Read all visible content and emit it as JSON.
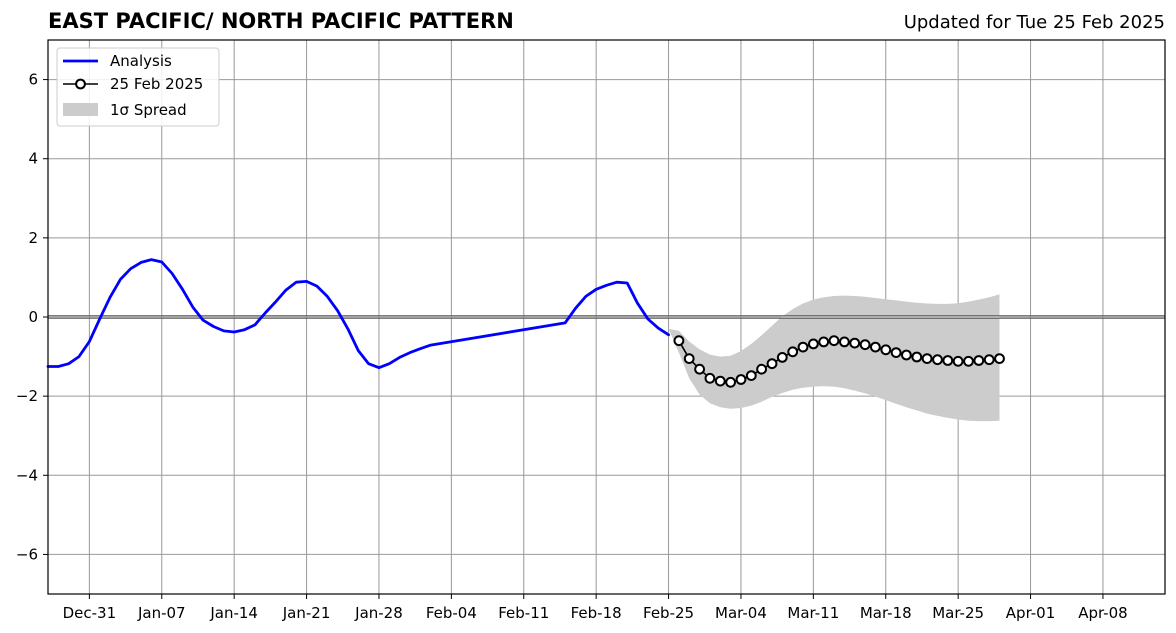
{
  "header": {
    "title": "EAST PACIFIC/ NORTH PACIFIC PATTERN",
    "updated": "Updated for Tue 25 Feb 2025"
  },
  "chart_data": {
    "type": "line",
    "title": "EAST PACIFIC/ NORTH PACIFIC PATTERN",
    "subtitle": "Updated for Tue 25 Feb 2025",
    "xlabel": "",
    "ylabel": "",
    "xlim": [
      "2024-12-27",
      "2025-04-14"
    ],
    "ylim": [
      -7,
      7
    ],
    "x_ticks": [
      "Dec-31",
      "Jan-07",
      "Jan-14",
      "Jan-21",
      "Jan-28",
      "Feb-04",
      "Feb-11",
      "Feb-18",
      "Feb-25",
      "Mar-04",
      "Mar-11",
      "Mar-18",
      "Mar-25",
      "Apr-01",
      "Apr-08"
    ],
    "y_ticks": [
      6,
      4,
      2,
      0,
      -2,
      -4,
      -6
    ],
    "grid": true,
    "zero_line": true,
    "legend_position": "top-left",
    "legend": {
      "analysis": "Analysis",
      "forecast": "25 Feb 2025",
      "spread": "1σ Spread"
    },
    "colors": {
      "analysis": "#0000ff",
      "forecast_line": "#000000",
      "forecast_marker_fill": "#ffffff",
      "spread": "#cccccc",
      "grid": "#999999"
    },
    "analysis": {
      "name": "Analysis",
      "dates": [
        "2024-12-27",
        "2024-12-28",
        "2024-12-29",
        "2024-12-30",
        "2024-12-31",
        "2025-01-01",
        "2025-01-02",
        "2025-01-03",
        "2025-01-04",
        "2025-01-05",
        "2025-01-06",
        "2025-01-07",
        "2025-01-08",
        "2025-01-09",
        "2025-01-10",
        "2025-01-11",
        "2025-01-12",
        "2025-01-13",
        "2025-01-14",
        "2025-01-15",
        "2025-01-16",
        "2025-01-17",
        "2025-01-18",
        "2025-01-19",
        "2025-01-20",
        "2025-01-21",
        "2025-01-22",
        "2025-01-23",
        "2025-01-24",
        "2025-01-25",
        "2025-01-26",
        "2025-01-27",
        "2025-01-28",
        "2025-01-29",
        "2025-01-30",
        "2025-01-31",
        "2025-02-01",
        "2025-02-02",
        "2025-02-15",
        "2025-02-16",
        "2025-02-17",
        "2025-02-18",
        "2025-02-19",
        "2025-02-20",
        "2025-02-21",
        "2025-02-22",
        "2025-02-23",
        "2025-02-24",
        "2025-02-25"
      ],
      "values": [
        -1.25,
        -1.25,
        -1.18,
        -1.0,
        -0.62,
        -0.05,
        0.5,
        0.95,
        1.22,
        1.38,
        1.45,
        1.39,
        1.1,
        0.7,
        0.25,
        -0.08,
        -0.24,
        -0.35,
        -0.38,
        -0.32,
        -0.2,
        0.1,
        0.38,
        0.68,
        0.88,
        0.9,
        0.78,
        0.52,
        0.16,
        -0.3,
        -0.85,
        -1.18,
        -1.28,
        -1.18,
        -1.02,
        -0.9,
        -0.8,
        -0.71,
        -0.15,
        0.22,
        0.52,
        0.7,
        0.8,
        0.88,
        0.86,
        0.35,
        -0.05,
        -0.28,
        -0.45
      ]
    },
    "forecast": {
      "name": "25 Feb 2025",
      "dates": [
        "2025-02-26",
        "2025-02-27",
        "2025-02-28",
        "2025-03-01",
        "2025-03-02",
        "2025-03-03",
        "2025-03-04",
        "2025-03-05",
        "2025-03-06",
        "2025-03-07",
        "2025-03-08",
        "2025-03-09",
        "2025-03-10",
        "2025-03-11",
        "2025-03-12",
        "2025-03-13",
        "2025-03-14",
        "2025-03-15",
        "2025-03-16",
        "2025-03-17",
        "2025-03-18",
        "2025-03-19",
        "2025-03-20",
        "2025-03-21",
        "2025-03-22",
        "2025-03-23",
        "2025-03-24",
        "2025-03-25",
        "2025-03-26",
        "2025-03-27",
        "2025-03-28",
        "2025-03-29"
      ],
      "values": [
        -0.6,
        -1.05,
        -1.32,
        -1.55,
        -1.62,
        -1.65,
        -1.58,
        -1.48,
        -1.32,
        -1.18,
        -1.02,
        -0.88,
        -0.76,
        -0.68,
        -0.63,
        -0.6,
        -0.63,
        -0.66,
        -0.7,
        -0.76,
        -0.83,
        -0.9,
        -0.96,
        -1.01,
        -1.05,
        -1.08,
        -1.1,
        -1.12,
        -1.12,
        -1.1,
        -1.08,
        -1.05
      ]
    },
    "spread": {
      "name": "1σ Spread",
      "dates": [
        "2025-02-25",
        "2025-02-26",
        "2025-02-27",
        "2025-02-28",
        "2025-03-01",
        "2025-03-02",
        "2025-03-03",
        "2025-03-04",
        "2025-03-05",
        "2025-03-06",
        "2025-03-07",
        "2025-03-08",
        "2025-03-09",
        "2025-03-10",
        "2025-03-11",
        "2025-03-12",
        "2025-03-13",
        "2025-03-14",
        "2025-03-15",
        "2025-03-16",
        "2025-03-17",
        "2025-03-18",
        "2025-03-19",
        "2025-03-20",
        "2025-03-21",
        "2025-03-22",
        "2025-03-23",
        "2025-03-24",
        "2025-03-25",
        "2025-03-26",
        "2025-03-27",
        "2025-03-28",
        "2025-03-29"
      ],
      "upper": [
        -0.3,
        -0.35,
        -0.62,
        -0.82,
        -0.95,
        -1.0,
        -0.98,
        -0.86,
        -0.68,
        -0.46,
        -0.22,
        0.02,
        0.2,
        0.34,
        0.44,
        0.5,
        0.53,
        0.54,
        0.53,
        0.51,
        0.48,
        0.45,
        0.42,
        0.39,
        0.36,
        0.34,
        0.33,
        0.33,
        0.35,
        0.39,
        0.44,
        0.5,
        0.57
      ],
      "lower": [
        -0.3,
        -0.9,
        -1.55,
        -1.96,
        -2.18,
        -2.28,
        -2.32,
        -2.3,
        -2.24,
        -2.14,
        -2.02,
        -1.92,
        -1.84,
        -1.79,
        -1.76,
        -1.75,
        -1.76,
        -1.8,
        -1.86,
        -1.93,
        -2.01,
        -2.1,
        -2.19,
        -2.28,
        -2.36,
        -2.44,
        -2.5,
        -2.55,
        -2.59,
        -2.62,
        -2.63,
        -2.63,
        -2.62
      ]
    }
  }
}
